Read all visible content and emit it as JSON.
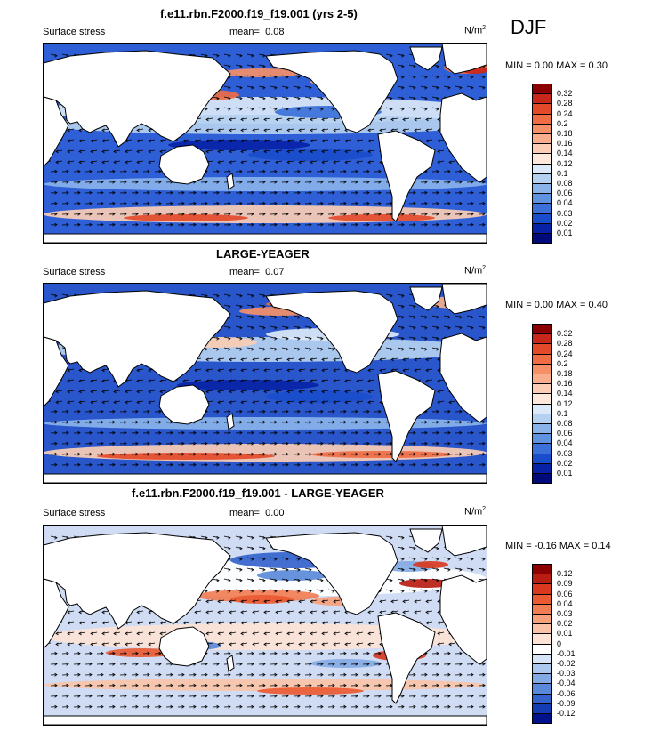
{
  "season": "DJF",
  "panels": [
    {
      "title": "f.e11.rbn.F2000.f19_f19.001 (yrs 2-5)",
      "variable": "Surface stress",
      "mean_label": "mean=",
      "mean_value": "0.08",
      "units": "N/m",
      "units_sup": "2",
      "minmax": "MIN =   0.00 MAX =   0.30",
      "colorbar": [
        "0.32",
        "0.28",
        "0.24",
        "0.2",
        "0.18",
        "0.16",
        "0.14",
        "0.12",
        "0.1",
        "0.08",
        "0.06",
        "0.04",
        "0.03",
        "0.02",
        "0.01"
      ],
      "colors": [
        "#8b0000",
        "#c8281c",
        "#e34a2a",
        "#ee6d45",
        "#f48f68",
        "#f8ae8d",
        "#fbcdb4",
        "#fde9dc",
        "#dbe9f8",
        "#b5d0f0",
        "#8ab3ea",
        "#5f92e0",
        "#3a70d8",
        "#1a4dcc",
        "#0822a6",
        "#000a78"
      ]
    },
    {
      "title": "LARGE-YEAGER",
      "variable": "Surface stress",
      "mean_label": "mean=",
      "mean_value": "0.07",
      "units": "N/m",
      "units_sup": "2",
      "minmax": "MIN =   0.00 MAX =   0.40",
      "colorbar": [
        "0.32",
        "0.28",
        "0.24",
        "0.2",
        "0.18",
        "0.16",
        "0.14",
        "0.12",
        "0.1",
        "0.08",
        "0.06",
        "0.04",
        "0.03",
        "0.02",
        "0.01"
      ],
      "colors": [
        "#8b0000",
        "#c8281c",
        "#e34a2a",
        "#ee6d45",
        "#f48f68",
        "#f8ae8d",
        "#fbcdb4",
        "#fde9dc",
        "#dbe9f8",
        "#b5d0f0",
        "#8ab3ea",
        "#5f92e0",
        "#3a70d8",
        "#1a4dcc",
        "#0822a6",
        "#000a78"
      ]
    },
    {
      "title": "f.e11.rbn.F2000.f19_f19.001 - LARGE-YEAGER",
      "variable": "Surface stress",
      "mean_label": "mean=",
      "mean_value": "0.00",
      "units": "N/m",
      "units_sup": "2",
      "minmax": "MIN =  -0.16 MAX =   0.14",
      "colorbar": [
        "0.12",
        "0.09",
        "0.06",
        "0.04",
        "0.03",
        "0.02",
        "0.01",
        "0",
        "-0.01",
        "-0.02",
        "-0.03",
        "-0.04",
        "-0.06",
        "-0.09",
        "-0.12"
      ],
      "colors": [
        "#8b0000",
        "#b81d14",
        "#d8391f",
        "#ea5a33",
        "#f17d54",
        "#f6a07c",
        "#fac3a8",
        "#fde3d5",
        "#ffffff",
        "#d6e4f6",
        "#adc8ee",
        "#84aae4",
        "#5a89d9",
        "#3463cc",
        "#143db4",
        "#02128a"
      ]
    }
  ]
}
